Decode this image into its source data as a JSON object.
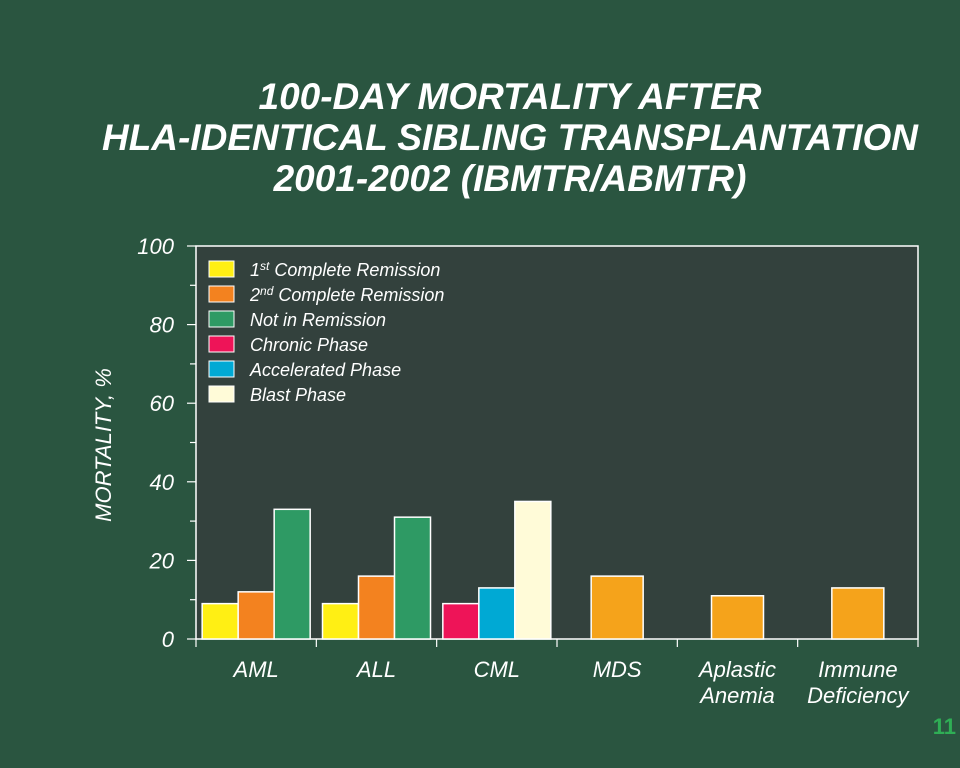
{
  "title_lines": [
    "100-DAY MORTALITY AFTER",
    "HLA-IDENTICAL SIBLING TRANSPLANTATION",
    "2001-2002 (IBMTR/ABMTR)"
  ],
  "page_number": "11",
  "colors": {
    "background": "#2a5540",
    "plot_bg": "#33413d",
    "text": "#ffffff",
    "page_number": "#2fae55"
  },
  "chart_data": {
    "type": "bar",
    "title": "100-DAY MORTALITY AFTER HLA-IDENTICAL SIBLING TRANSPLANTATION 2001-2002 (IBMTR/ABMTR)",
    "ylabel": "MORTALITY, %",
    "xlabel": "",
    "ylim": [
      0,
      100
    ],
    "yticks": [
      0,
      20,
      40,
      60,
      80,
      100
    ],
    "legend_position": "top-left",
    "legend": [
      {
        "key": "cr1",
        "sup": "st",
        "prefix": "1",
        "text": "Complete Remission",
        "color": "#ffef14"
      },
      {
        "key": "cr2",
        "sup": "nd",
        "prefix": "2",
        "text": "Complete Remission",
        "color": "#f3821f"
      },
      {
        "key": "nir",
        "text": "Not in Remission",
        "color": "#2e9a64"
      },
      {
        "key": "cp",
        "text": "Chronic Phase",
        "color": "#ee1458"
      },
      {
        "key": "ap",
        "text": "Accelerated Phase",
        "color": "#00a9d4"
      },
      {
        "key": "bp",
        "text": "Blast Phase",
        "color": "#fffbd8"
      }
    ],
    "groups": [
      {
        "label": [
          "AML"
        ],
        "bars": [
          {
            "key": "cr1",
            "value": 9
          },
          {
            "key": "cr2",
            "value": 12
          },
          {
            "key": "nir",
            "value": 33
          }
        ]
      },
      {
        "label": [
          "ALL"
        ],
        "bars": [
          {
            "key": "cr1",
            "value": 9
          },
          {
            "key": "cr2",
            "value": 16
          },
          {
            "key": "nir",
            "value": 31
          }
        ]
      },
      {
        "label": [
          "CML"
        ],
        "bars": [
          {
            "key": "cp",
            "value": 9
          },
          {
            "key": "ap",
            "value": 13
          },
          {
            "key": "bp",
            "value": 35
          }
        ]
      },
      {
        "label": [
          "MDS"
        ],
        "bars": [
          {
            "key": "mds",
            "value": 16,
            "color": "#f5a31b"
          }
        ]
      },
      {
        "label": [
          "Aplastic",
          "Anemia"
        ],
        "bars": [
          {
            "key": "aa",
            "value": 11,
            "color": "#f5a31b"
          }
        ]
      },
      {
        "label": [
          "Immune",
          "Deficiency"
        ],
        "bars": [
          {
            "key": "id",
            "value": 13,
            "color": "#f5a31b"
          }
        ]
      }
    ]
  }
}
